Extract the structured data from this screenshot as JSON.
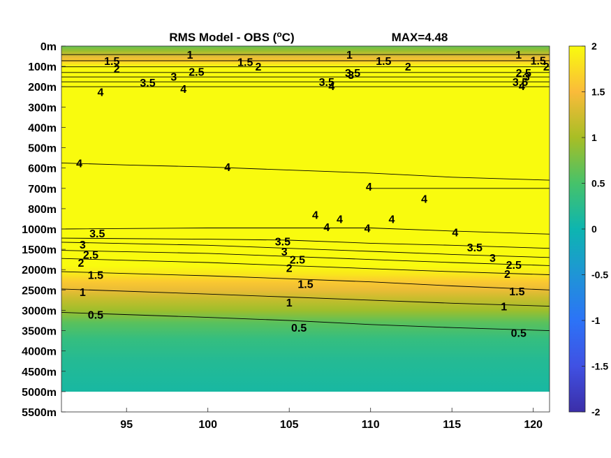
{
  "chart_data": {
    "type": "heatmap",
    "title": "RMS Model - OBS (",
    "title_unit_sup": "o",
    "title_unit_tail": "C)",
    "max_label": "MAX=4.48",
    "x_ticks": [
      {
        "value": 95,
        "label": "95"
      },
      {
        "value": 100,
        "label": "100"
      },
      {
        "value": 105,
        "label": "105"
      },
      {
        "value": 110,
        "label": "110"
      },
      {
        "value": 115,
        "label": "115"
      },
      {
        "value": 120,
        "label": "120"
      }
    ],
    "xlim": [
      91,
      121
    ],
    "y_ticks": [
      "0m",
      "100m",
      "200m",
      "300m",
      "400m",
      "500m",
      "600m",
      "700m",
      "800m",
      "1000m",
      "1500m",
      "2000m",
      "2500m",
      "3000m",
      "3500m",
      "4000m",
      "4500m",
      "5000m",
      "5500m"
    ],
    "data_bottom_index": 17,
    "colorbar": {
      "range": [
        -2,
        2
      ],
      "ticks": [
        {
          "value": 2,
          "label": "2"
        },
        {
          "value": 1.5,
          "label": "1.5"
        },
        {
          "value": 1,
          "label": "1"
        },
        {
          "value": 0.5,
          "label": "0.5"
        },
        {
          "value": 0,
          "label": "0"
        },
        {
          "value": -0.5,
          "label": "-0.5"
        },
        {
          "value": -1,
          "label": "-1"
        },
        {
          "value": -1.5,
          "label": "-1.5"
        },
        {
          "value": -2,
          "label": "-2"
        }
      ]
    },
    "color_profile": [
      {
        "depth_index": 0.0,
        "value": 0.65
      },
      {
        "depth_index": 0.25,
        "value": 0.95
      },
      {
        "depth_index": 0.55,
        "value": 1.4
      },
      {
        "depth_index": 0.75,
        "value": 1.65
      },
      {
        "depth_index": 1.0,
        "value": 2.0
      },
      {
        "depth_index": 10.8,
        "value": 2.0
      },
      {
        "depth_index": 11.2,
        "value": 1.85
      },
      {
        "depth_index": 11.6,
        "value": 1.6
      },
      {
        "depth_index": 12.0,
        "value": 1.4
      },
      {
        "depth_index": 12.4,
        "value": 1.2
      },
      {
        "depth_index": 13.0,
        "value": 0.95
      },
      {
        "depth_index": 13.6,
        "value": 0.6
      },
      {
        "depth_index": 14.4,
        "value": 0.35
      },
      {
        "depth_index": 15.5,
        "value": 0.2
      },
      {
        "depth_index": 17.0,
        "value": 0.1
      }
    ],
    "contours": [
      {
        "level": "4",
        "x": [
          91,
          95,
          100,
          105,
          110,
          115,
          121
        ],
        "y": [
          5.75,
          5.85,
          5.95,
          6.1,
          6.25,
          6.45,
          6.6
        ],
        "labels": [
          {
            "x": 92.1,
            "y": 5.75
          },
          {
            "x": 101.2,
            "y": 5.95
          }
        ]
      },
      {
        "level": "4",
        "x": [
          91,
          100,
          105,
          110,
          115,
          121
        ],
        "y": [
          9.0,
          8.95,
          8.95,
          8.95,
          9.1,
          9.25
        ],
        "labels": [
          {
            "x": 115.2,
            "y": 9.15
          }
        ]
      },
      {
        "level": "3.5",
        "x": [
          91,
          100,
          105,
          110,
          115,
          121
        ],
        "y": [
          9.45,
          9.5,
          9.55,
          9.7,
          9.8,
          9.95
        ],
        "labels": [
          {
            "x": 93.2,
            "y": 9.2
          },
          {
            "x": 104.6,
            "y": 9.6
          },
          {
            "x": 116.4,
            "y": 9.9
          }
        ]
      },
      {
        "level": "3",
        "x": [
          91,
          100,
          105,
          110,
          115,
          121
        ],
        "y": [
          9.65,
          9.8,
          9.95,
          10.1,
          10.25,
          10.4
        ],
        "labels": [
          {
            "x": 92.3,
            "y": 9.75
          },
          {
            "x": 104.7,
            "y": 10.1
          },
          {
            "x": 117.5,
            "y": 10.4
          }
        ]
      },
      {
        "level": "2.5",
        "x": [
          91,
          100,
          105,
          110,
          115,
          121
        ],
        "y": [
          10.05,
          10.2,
          10.35,
          10.5,
          10.65,
          10.8
        ],
        "labels": [
          {
            "x": 92.8,
            "y": 10.25
          },
          {
            "x": 105.5,
            "y": 10.5
          },
          {
            "x": 118.8,
            "y": 10.75
          }
        ]
      },
      {
        "level": "2",
        "x": [
          91,
          100,
          105,
          110,
          115,
          121
        ],
        "y": [
          10.45,
          10.65,
          10.8,
          10.95,
          11.1,
          11.25
        ],
        "labels": [
          {
            "x": 92.2,
            "y": 10.65
          },
          {
            "x": 105,
            "y": 10.9
          },
          {
            "x": 118.4,
            "y": 11.2
          }
        ]
      },
      {
        "level": "1.5",
        "x": [
          91,
          100,
          105,
          110,
          115,
          121
        ],
        "y": [
          11.1,
          11.3,
          11.45,
          11.6,
          11.8,
          12.0
        ],
        "labels": [
          {
            "x": 93.1,
            "y": 11.25
          },
          {
            "x": 106,
            "y": 11.7
          },
          {
            "x": 119,
            "y": 12.05
          }
        ]
      },
      {
        "level": "1",
        "x": [
          91,
          100,
          105,
          110,
          115,
          121
        ],
        "y": [
          11.95,
          12.2,
          12.35,
          12.5,
          12.65,
          12.8
        ],
        "labels": [
          {
            "x": 92.3,
            "y": 12.1
          },
          {
            "x": 105,
            "y": 12.6
          },
          {
            "x": 118.2,
            "y": 12.8
          }
        ]
      },
      {
        "level": "0.5",
        "x": [
          91,
          100,
          105,
          110,
          115,
          121
        ],
        "y": [
          13.1,
          13.35,
          13.5,
          13.7,
          13.85,
          14.0
        ],
        "labels": [
          {
            "x": 93.1,
            "y": 13.2
          },
          {
            "x": 105.6,
            "y": 13.85
          },
          {
            "x": 119.1,
            "y": 14.1
          }
        ]
      },
      {
        "level": "1",
        "x": [
          91,
          121
        ],
        "y": [
          0.42,
          0.42
        ],
        "labels": [
          {
            "x": 98.9,
            "y": 0.42
          },
          {
            "x": 108.7,
            "y": 0.42
          },
          {
            "x": 119.1,
            "y": 0.42
          }
        ]
      },
      {
        "level": "1.5",
        "x": [
          91,
          121
        ],
        "y": [
          0.72,
          0.72
        ],
        "labels": [
          {
            "x": 94.1,
            "y": 0.72
          },
          {
            "x": 102.3,
            "y": 0.78
          },
          {
            "x": 110.8,
            "y": 0.72
          },
          {
            "x": 120.3,
            "y": 0.7
          }
        ]
      },
      {
        "level": "2",
        "x": [
          91,
          121
        ],
        "y": [
          1.02,
          1.02
        ],
        "labels": [
          {
            "x": 94.4,
            "y": 1.1
          },
          {
            "x": 103.1,
            "y": 1.0
          },
          {
            "x": 112.3,
            "y": 1.0
          },
          {
            "x": 120.8,
            "y": 1.0
          }
        ]
      },
      {
        "level": "2.5",
        "x": [
          91,
          121
        ],
        "y": [
          1.3,
          1.3
        ],
        "labels": [
          {
            "x": 99.3,
            "y": 1.25
          },
          {
            "x": 119.4,
            "y": 1.3
          }
        ]
      },
      {
        "level": "3",
        "x": [
          91,
          121
        ],
        "y": [
          1.52,
          1.52
        ],
        "labels": [
          {
            "x": 97.9,
            "y": 1.5
          },
          {
            "x": 108.8,
            "y": 1.4
          },
          {
            "x": 119.6,
            "y": 1.5
          }
        ]
      },
      {
        "level": "3.5",
        "x": [
          91,
          121
        ],
        "y": [
          1.76,
          1.76
        ],
        "labels": [
          {
            "x": 96.3,
            "y": 1.78
          },
          {
            "x": 107.3,
            "y": 1.75
          },
          {
            "x": 108.9,
            "y": 1.3
          },
          {
            "x": 119.2,
            "y": 1.75
          }
        ]
      },
      {
        "level": "4",
        "x": [
          91,
          121
        ],
        "y": [
          2.0,
          2.0
        ],
        "labels": [
          {
            "x": 93.4,
            "y": 2.25
          },
          {
            "x": 98.5,
            "y": 2.1
          },
          {
            "x": 107.6,
            "y": 1.95
          },
          {
            "x": 119.3,
            "y": 1.95
          }
        ]
      },
      {
        "level": "4",
        "x": [
          110,
          121
        ],
        "y": [
          7.0,
          7.0
        ],
        "labels": [
          {
            "x": 109.9,
            "y": 6.9
          },
          {
            "x": 113.3,
            "y": 7.5
          },
          {
            "x": 111.3,
            "y": 8.5
          },
          {
            "x": 109.8,
            "y": 8.95
          },
          {
            "x": 107.3,
            "y": 8.9
          },
          {
            "x": 108.1,
            "y": 8.5
          },
          {
            "x": 106.6,
            "y": 8.3
          }
        ]
      }
    ]
  }
}
